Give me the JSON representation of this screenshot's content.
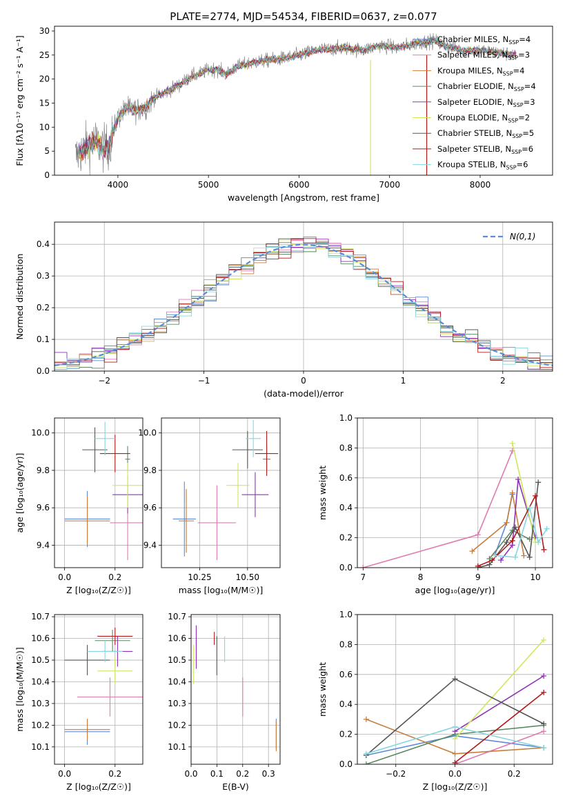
{
  "title": "PLATE=2774, MJD=54534, FIBERID=0637, z=0.077",
  "colors": {
    "chabrier_miles": "#5b8bd6",
    "salpeter_miles": "#e07ab0",
    "kroupa_miles": "#c87d3a",
    "chabrier_elodie": "#5b8a62",
    "salpeter_elodie": "#9032b8",
    "kroupa_elodie": "#cfe85a",
    "chabrier_stelib": "#555555",
    "salpeter_stelib": "#b01a1a",
    "kroupa_stelib": "#86d6e0",
    "normal": "#5b8bd6"
  },
  "chart_data": [
    {
      "type": "line",
      "id": "spectrum",
      "xlabel": "wavelength [Angstrom, rest frame]",
      "ylabel": "Flux [fλ10⁻¹⁷ erg cm⁻² s⁻¹ A⁻¹]",
      "xlim": [
        3300,
        8800
      ],
      "ylim": [
        0,
        31
      ],
      "xticks": [
        4000,
        5000,
        6000,
        7000,
        8000
      ],
      "yticks": [
        0,
        5,
        10,
        15,
        20,
        25,
        30
      ],
      "grid": false,
      "legend_position": "right",
      "legend": [
        {
          "base": "Chabrier MILES, N",
          "sub": "SSP",
          "tail": "=4",
          "color_key": "chabrier_miles"
        },
        {
          "base": "Salpeter MILES, N",
          "sub": "SSP",
          "tail": "=3",
          "color_key": "salpeter_miles"
        },
        {
          "base": "Kroupa MILES, N",
          "sub": "SSP",
          "tail": "=4",
          "color_key": "kroupa_miles"
        },
        {
          "base": "Chabrier ELODIE, N",
          "sub": "SSP",
          "tail": "=4",
          "color_key": "chabrier_elodie"
        },
        {
          "base": "Salpeter ELODIE, N",
          "sub": "SSP",
          "tail": "=3",
          "color_key": "salpeter_elodie"
        },
        {
          "base": "Kroupa ELODIE, N",
          "sub": "SSP",
          "tail": "=2",
          "color_key": "kroupa_elodie"
        },
        {
          "base": "Chabrier STELIB, N",
          "sub": "SSP",
          "tail": "=5",
          "color_key": "chabrier_stelib"
        },
        {
          "base": "Salpeter STELIB, N",
          "sub": "SSP",
          "tail": "=6",
          "color_key": "salpeter_stelib"
        },
        {
          "base": "Kroupa STELIB, N",
          "sub": "SSP",
          "tail": "=6",
          "color_key": "kroupa_stelib"
        }
      ],
      "continuum": [
        [
          3550,
          4
        ],
        [
          3650,
          6
        ],
        [
          3750,
          7
        ],
        [
          3850,
          5.5
        ],
        [
          3900,
          6
        ],
        [
          3950,
          9
        ],
        [
          4000,
          12
        ],
        [
          4100,
          14
        ],
        [
          4200,
          13.5
        ],
        [
          4300,
          14
        ],
        [
          4400,
          16
        ],
        [
          4500,
          17
        ],
        [
          4600,
          18
        ],
        [
          4700,
          19
        ],
        [
          4800,
          20.5
        ],
        [
          4900,
          21
        ],
        [
          5000,
          22
        ],
        [
          5100,
          22
        ],
        [
          5200,
          21
        ],
        [
          5300,
          22.5
        ],
        [
          5500,
          23.5
        ],
        [
          5700,
          24
        ],
        [
          5900,
          24.5
        ],
        [
          6000,
          25
        ],
        [
          6200,
          26
        ],
        [
          6500,
          26.5
        ],
        [
          6700,
          26
        ],
        [
          6900,
          27
        ],
        [
          7100,
          26.5
        ],
        [
          7300,
          27.5
        ],
        [
          7500,
          28
        ],
        [
          7600,
          27
        ],
        [
          7800,
          26
        ],
        [
          8000,
          26
        ],
        [
          8400,
          25
        ]
      ],
      "drops": [
        {
          "x": 6790,
          "y_from": 24,
          "y_to": 0,
          "color_key": "kroupa_elodie"
        },
        {
          "x": 7410,
          "y_from": 25,
          "y_to": 0,
          "color_key": "salpeter_stelib"
        }
      ]
    },
    {
      "type": "line",
      "id": "residuals",
      "xlabel": "(data-model)/error",
      "ylabel": "Normed distribution",
      "xlim": [
        -2.5,
        2.5
      ],
      "ylim": [
        0,
        0.47
      ],
      "xticks": [
        -2,
        -1,
        0,
        1,
        2
      ],
      "yticks": [
        0.0,
        0.1,
        0.2,
        0.3,
        0.4
      ],
      "grid": true,
      "legend_position": "upper right",
      "legend_label": "N(0,1)",
      "bins": 40
    },
    {
      "type": "scatter",
      "id": "age_vs_Z",
      "xlabel": "Z [log₁₀(Z/Z☉)]",
      "ylabel": "age  [log₁₀(age/yr)]",
      "xlim": [
        -0.04,
        0.31
      ],
      "ylim": [
        9.28,
        10.08
      ],
      "xticks": [
        0.0,
        0.2
      ],
      "yticks": [
        9.4,
        9.6,
        9.8,
        10.0
      ],
      "grid": true,
      "points": [
        {
          "color_key": "chabrier_miles",
          "x": 0.09,
          "xerr": 0.09,
          "y": 9.54,
          "yerr": 0.15
        },
        {
          "color_key": "salpeter_miles",
          "x": 0.25,
          "xerr": 0.07,
          "y": 9.52,
          "yerr": 0.2
        },
        {
          "color_key": "kroupa_miles",
          "x": 0.09,
          "xerr": 0.09,
          "y": 9.53,
          "yerr": 0.13
        },
        {
          "color_key": "chabrier_elodie",
          "x": 0.25,
          "xerr": 0.01,
          "y": 9.86,
          "yerr": 0.07
        },
        {
          "color_key": "salpeter_elodie",
          "x": 0.25,
          "xerr": 0.06,
          "y": 9.67,
          "yerr": 0.1
        },
        {
          "color_key": "kroupa_elodie",
          "x": 0.25,
          "xerr": 0.06,
          "y": 9.72,
          "yerr": 0.12
        },
        {
          "color_key": "chabrier_stelib",
          "x": 0.12,
          "xerr": 0.05,
          "y": 9.91,
          "yerr": 0.12
        },
        {
          "color_key": "salpeter_stelib",
          "x": 0.2,
          "xerr": 0.06,
          "y": 9.89,
          "yerr": 0.1
        },
        {
          "color_key": "kroupa_stelib",
          "x": 0.16,
          "xerr": 0.04,
          "y": 9.97,
          "yerr": 0.09
        }
      ]
    },
    {
      "type": "scatter",
      "id": "age_vs_mass",
      "xlabel": "mass [log₁₀(M/M☉)]",
      "ylabel": "",
      "xlim": [
        10.05,
        10.67
      ],
      "ylim": [
        9.28,
        10.08
      ],
      "xticks": [
        10.25,
        10.5
      ],
      "yticks": [
        9.4,
        9.6,
        9.8,
        10.0
      ],
      "grid": true,
      "points": [
        {
          "color_key": "chabrier_miles",
          "x": 10.17,
          "xerr": 0.06,
          "y": 9.54,
          "yerr": 0.2
        },
        {
          "color_key": "salpeter_miles",
          "x": 10.34,
          "xerr": 0.1,
          "y": 9.52,
          "yerr": 0.2
        },
        {
          "color_key": "kroupa_miles",
          "x": 10.18,
          "xerr": 0.04,
          "y": 9.53,
          "yerr": 0.17
        },
        {
          "color_key": "chabrier_elodie",
          "x": 10.6,
          "xerr": 0.02,
          "y": 9.86,
          "yerr": 0.07
        },
        {
          "color_key": "salpeter_elodie",
          "x": 10.54,
          "xerr": 0.07,
          "y": 9.67,
          "yerr": 0.12
        },
        {
          "color_key": "kroupa_elodie",
          "x": 10.45,
          "xerr": 0.06,
          "y": 9.72,
          "yerr": 0.12
        },
        {
          "color_key": "chabrier_stelib",
          "x": 10.5,
          "xerr": 0.08,
          "y": 9.91,
          "yerr": 0.1
        },
        {
          "color_key": "salpeter_stelib",
          "x": 10.6,
          "xerr": 0.06,
          "y": 9.89,
          "yerr": 0.12
        },
        {
          "color_key": "kroupa_stelib",
          "x": 10.53,
          "xerr": 0.04,
          "y": 9.97,
          "yerr": 0.1
        }
      ]
    },
    {
      "type": "line",
      "id": "weight_vs_age",
      "xlabel": "age  [log₁₀(age/yr)]",
      "ylabel": "mass weight",
      "xlim": [
        6.9,
        10.3
      ],
      "ylim": [
        0,
        1.0
      ],
      "xticks": [
        7,
        8,
        9,
        10
      ],
      "yticks": [
        0.0,
        0.2,
        0.4,
        0.6,
        0.8,
        1.0
      ],
      "grid": true,
      "series": [
        {
          "color_key": "chabrier_miles",
          "x": [
            9.3,
            9.5,
            9.6
          ],
          "y": [
            0.09,
            0.3,
            0.49
          ]
        },
        {
          "color_key": "salpeter_miles",
          "x": [
            7.0,
            9.0,
            9.6
          ],
          "y": [
            0.0,
            0.22,
            0.78
          ]
        },
        {
          "color_key": "kroupa_miles",
          "x": [
            8.9,
            9.5,
            9.6,
            9.8
          ],
          "y": [
            0.11,
            0.3,
            0.5,
            0.08
          ]
        },
        {
          "color_key": "chabrier_elodie",
          "x": [
            9.2,
            9.6,
            9.9
          ],
          "y": [
            0.06,
            0.25,
            0.19
          ]
        },
        {
          "color_key": "salpeter_elodie",
          "x": [
            9.4,
            9.6,
            9.7,
            10.0
          ],
          "y": [
            0.05,
            0.15,
            0.59,
            0.2
          ]
        },
        {
          "color_key": "kroupa_elodie",
          "x": [
            9.6,
            10.0
          ],
          "y": [
            0.83,
            0.17
          ]
        },
        {
          "color_key": "chabrier_stelib",
          "x": [
            9.0,
            9.2,
            9.5,
            9.65,
            9.9,
            10.05
          ],
          "y": [
            0.0,
            0.02,
            0.17,
            0.27,
            0.07,
            0.57
          ]
        },
        {
          "color_key": "salpeter_stelib",
          "x": [
            9.0,
            9.25,
            9.6,
            10.0,
            10.15
          ],
          "y": [
            0.01,
            0.05,
            0.18,
            0.48,
            0.12
          ]
        },
        {
          "color_key": "kroupa_stelib",
          "x": [
            9.3,
            9.65,
            9.9,
            10.05,
            10.2
          ],
          "y": [
            0.08,
            0.07,
            0.4,
            0.17,
            0.26
          ]
        }
      ]
    },
    {
      "type": "scatter",
      "id": "mass_vs_Z",
      "xlabel": "Z [log₁₀(Z/Z☉)]",
      "ylabel": "mass [log₁₀(M/M☉)]",
      "xlim": [
        -0.04,
        0.31
      ],
      "ylim": [
        10.02,
        10.71
      ],
      "xticks": [
        0.0,
        0.2
      ],
      "yticks": [
        10.1,
        10.2,
        10.3,
        10.4,
        10.5,
        10.6,
        10.7
      ],
      "grid": true,
      "points": [
        {
          "color_key": "chabrier_miles",
          "x": 0.09,
          "xerr": 0.09,
          "y": 10.17,
          "yerr": 0.06
        },
        {
          "color_key": "salpeter_miles",
          "x": 0.18,
          "xerr": 0.13,
          "y": 10.33,
          "yerr": 0.09
        },
        {
          "color_key": "kroupa_miles",
          "x": 0.09,
          "xerr": 0.09,
          "y": 10.18,
          "yerr": 0.05
        },
        {
          "color_key": "chabrier_elodie",
          "x": 0.19,
          "xerr": 0.07,
          "y": 10.59,
          "yerr": 0.05
        },
        {
          "color_key": "salpeter_elodie",
          "x": 0.21,
          "xerr": 0.06,
          "y": 10.54,
          "yerr": 0.07
        },
        {
          "color_key": "kroupa_elodie",
          "x": 0.2,
          "xerr": 0.07,
          "y": 10.45,
          "yerr": 0.06
        },
        {
          "color_key": "chabrier_stelib",
          "x": 0.09,
          "xerr": 0.09,
          "y": 10.5,
          "yerr": 0.07
        },
        {
          "color_key": "salpeter_stelib",
          "x": 0.2,
          "xerr": 0.07,
          "y": 10.61,
          "yerr": 0.04
        },
        {
          "color_key": "kroupa_stelib",
          "x": 0.16,
          "xerr": 0.07,
          "y": 10.54,
          "yerr": 0.05
        }
      ]
    },
    {
      "type": "scatter",
      "id": "mass_vs_ebv",
      "xlabel": "E(B-V)",
      "ylabel": "",
      "xlim": [
        0.0,
        0.345
      ],
      "ylim": [
        10.02,
        10.71
      ],
      "xticks": [
        0.0,
        0.1,
        0.2,
        0.3
      ],
      "yticks": [
        10.1,
        10.2,
        10.3,
        10.4,
        10.5,
        10.6,
        10.7
      ],
      "grid": true,
      "points": [
        {
          "color_key": "chabrier_miles",
          "x": 0.33,
          "xerr": 0.0,
          "y": 10.16,
          "yerr": 0.07
        },
        {
          "color_key": "salpeter_miles",
          "x": 0.2,
          "xerr": 0.0,
          "y": 10.33,
          "yerr": 0.09
        },
        {
          "color_key": "kroupa_miles",
          "x": 0.33,
          "xerr": 0.0,
          "y": 10.15,
          "yerr": 0.07
        },
        {
          "color_key": "chabrier_elodie",
          "x": 0.02,
          "xerr": 0.0,
          "y": 10.58,
          "yerr": 0.08
        },
        {
          "color_key": "salpeter_elodie",
          "x": 0.02,
          "xerr": 0.0,
          "y": 10.56,
          "yerr": 0.1
        },
        {
          "color_key": "kroupa_elodie",
          "x": 0.01,
          "xerr": 0.0,
          "y": 10.48,
          "yerr": 0.09
        },
        {
          "color_key": "chabrier_stelib",
          "x": 0.1,
          "xerr": 0.0,
          "y": 10.52,
          "yerr": 0.09
        },
        {
          "color_key": "salpeter_stelib",
          "x": 0.09,
          "xerr": 0.0,
          "y": 10.6,
          "yerr": 0.03
        },
        {
          "color_key": "kroupa_stelib",
          "x": 0.13,
          "xerr": 0.0,
          "y": 10.55,
          "yerr": 0.06
        }
      ]
    },
    {
      "type": "line",
      "id": "weight_vs_Z",
      "xlabel": "Z [log₁₀(Z/Z☉)]",
      "ylabel": "mass weight",
      "xlim": [
        -0.33,
        0.33
      ],
      "ylim": [
        0,
        1.0
      ],
      "xticks": [
        -0.2,
        0.0,
        0.2
      ],
      "yticks": [
        0.0,
        0.2,
        0.4,
        0.6,
        0.8,
        1.0
      ],
      "grid": true,
      "series": [
        {
          "color_key": "chabrier_miles",
          "x": [
            -0.3,
            0.0,
            0.3
          ],
          "y": [
            0.06,
            0.19,
            0.11
          ]
        },
        {
          "color_key": "salpeter_miles",
          "x": [
            0.0,
            0.3
          ],
          "y": [
            0.0,
            0.22
          ]
        },
        {
          "color_key": "kroupa_miles",
          "x": [
            -0.3,
            0.0,
            0.3
          ],
          "y": [
            0.3,
            0.07,
            0.11
          ]
        },
        {
          "color_key": "chabrier_elodie",
          "x": [
            -0.3,
            0.0,
            0.3
          ],
          "y": [
            0.0,
            0.2,
            0.26
          ]
        },
        {
          "color_key": "salpeter_elodie",
          "x": [
            0.0,
            0.3
          ],
          "y": [
            0.22,
            0.59
          ]
        },
        {
          "color_key": "kroupa_elodie",
          "x": [
            0.0,
            0.3
          ],
          "y": [
            0.17,
            0.83
          ]
        },
        {
          "color_key": "chabrier_stelib",
          "x": [
            -0.3,
            0.0,
            0.3
          ],
          "y": [
            0.06,
            0.57,
            0.27
          ]
        },
        {
          "color_key": "salpeter_stelib",
          "x": [
            0.0,
            0.3
          ],
          "y": [
            0.01,
            0.48
          ]
        },
        {
          "color_key": "kroupa_stelib",
          "x": [
            -0.3,
            0.0,
            0.3
          ],
          "y": [
            0.07,
            0.25,
            0.11
          ]
        }
      ]
    }
  ]
}
